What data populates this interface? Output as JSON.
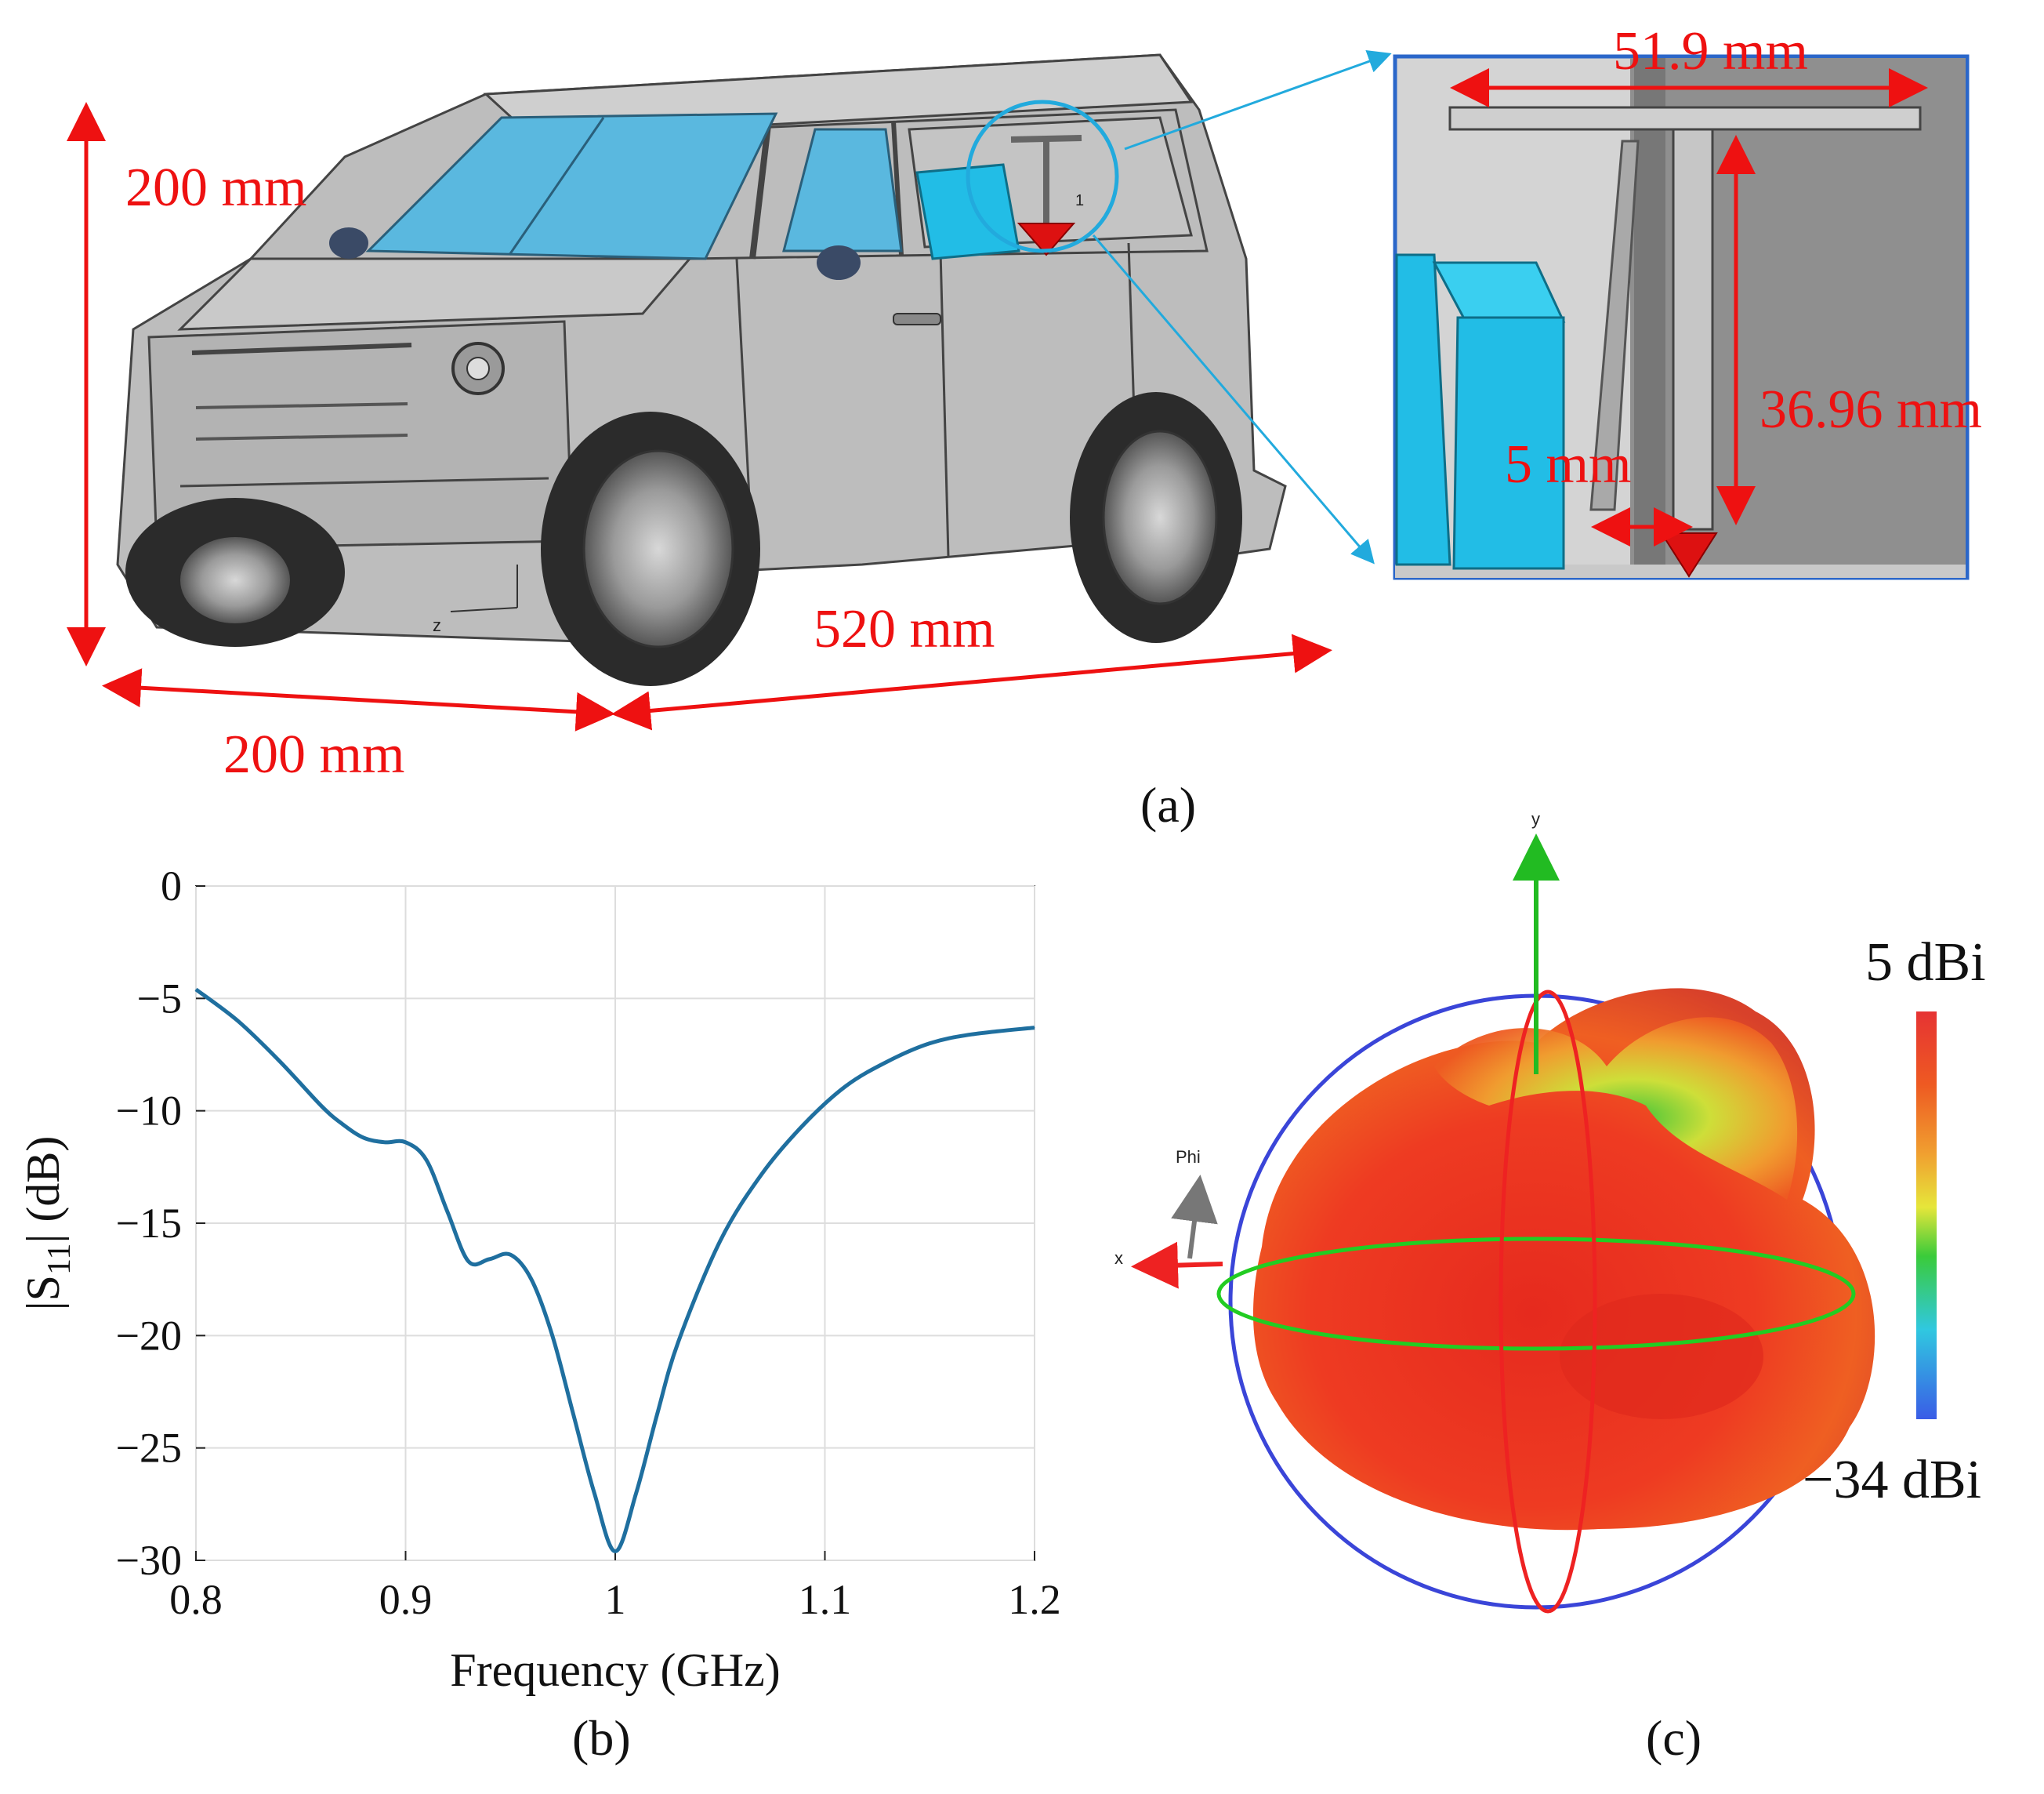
{
  "panel_a": {
    "caption": "(a)",
    "dims": {
      "height": "200 mm",
      "width": "200 mm",
      "length": "520 mm",
      "bar": "51.9 mm",
      "mono": "36.96 mm",
      "gap": "5 mm"
    },
    "axis_z": "z",
    "port_label": "1",
    "colors": {
      "dimension": "#ee1111",
      "callout": "#22aadd",
      "body": "#bdbdbd",
      "glass": "#5ab8df",
      "box": "#22bde6",
      "port": "#dd1111"
    }
  },
  "chart_data": {
    "type": "line",
    "xlabel": "Frequency (GHz)",
    "ylabel_main": "|S",
    "ylabel_sub": "11",
    "ylabel_tail": "| (dB)",
    "xlim": [
      0.8,
      1.2
    ],
    "ylim": [
      -30,
      0
    ],
    "xticks": [
      0.8,
      0.9,
      1.0,
      1.1,
      1.2
    ],
    "xtick_labels": [
      "0.8",
      "0.9",
      "1",
      "1.1",
      "1.2"
    ],
    "yticks": [
      0,
      -5,
      -10,
      -15,
      -20,
      -25,
      -30
    ],
    "ytick_labels": [
      "0",
      "−5",
      "−10",
      "−15",
      "−20",
      "−25",
      "−30"
    ],
    "grid": true,
    "series": [
      {
        "color": "#1f6f9f",
        "x": [
          0.8,
          0.82,
          0.84,
          0.86,
          0.87,
          0.88,
          0.89,
          0.9,
          0.91,
          0.92,
          0.93,
          0.94,
          0.95,
          0.96,
          0.97,
          0.98,
          0.99,
          1.0,
          1.01,
          1.02,
          1.03,
          1.05,
          1.07,
          1.09,
          1.11,
          1.13,
          1.15,
          1.17,
          1.2
        ],
        "y": [
          -4.6,
          -6.0,
          -7.8,
          -9.8,
          -10.6,
          -11.2,
          -11.4,
          -11.4,
          -12.2,
          -14.5,
          -16.7,
          -16.6,
          -16.4,
          -17.5,
          -20.0,
          -23.5,
          -27.0,
          -29.6,
          -27.0,
          -23.5,
          -20.3,
          -15.8,
          -12.8,
          -10.6,
          -8.9,
          -7.8,
          -7.0,
          -6.6,
          -6.3
        ]
      }
    ],
    "caption": "(b)"
  },
  "panel_c": {
    "caption": "(c)",
    "axis_x": "x",
    "axis_y": "y",
    "phi_label": "Phi",
    "colorbar_max": "5 dBi",
    "colorbar_min": "−34 dBi",
    "colormap": [
      "#e63333",
      "#ee5a22",
      "#f0a030",
      "#e6e63a",
      "#3acb3a",
      "#30c8e0",
      "#3a5ce6"
    ]
  }
}
